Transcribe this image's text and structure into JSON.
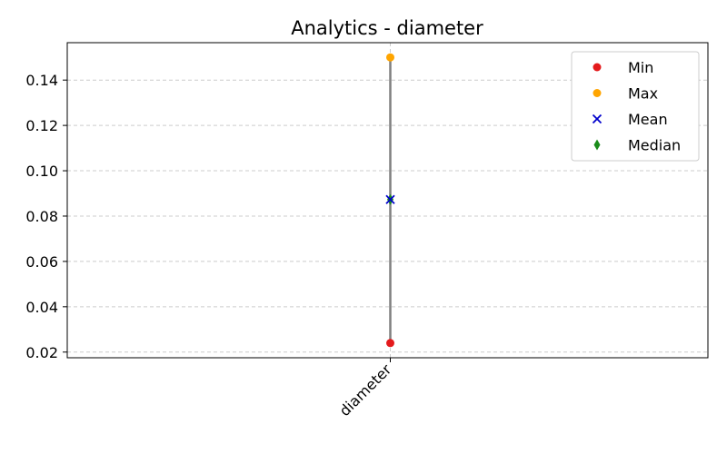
{
  "chart_data": {
    "type": "scatter",
    "title": "Analytics - diameter",
    "xlabel": "",
    "ylabel": "",
    "categories": [
      "diameter"
    ],
    "ylim": [
      0.0175,
      0.1565
    ],
    "yticks": [
      0.02,
      0.04,
      0.06,
      0.08,
      0.1,
      0.12,
      0.14
    ],
    "ytick_labels": [
      "0.02",
      "0.04",
      "0.06",
      "0.08",
      "0.10",
      "0.12",
      "0.14"
    ],
    "grid": true,
    "legend_position": "top-right",
    "range_line_color": "#808080",
    "series": [
      {
        "name": "Min",
        "marker": "circle",
        "color": "#e41a1c",
        "values": [
          0.024
        ]
      },
      {
        "name": "Max",
        "marker": "circle",
        "color": "#ffa500",
        "values": [
          0.15
        ]
      },
      {
        "name": "Mean",
        "marker": "x",
        "color": "#0000cc",
        "values": [
          0.0873
        ]
      },
      {
        "name": "Median",
        "marker": "diamond",
        "color": "#1a8c1a",
        "values": [
          0.0873
        ]
      }
    ]
  }
}
